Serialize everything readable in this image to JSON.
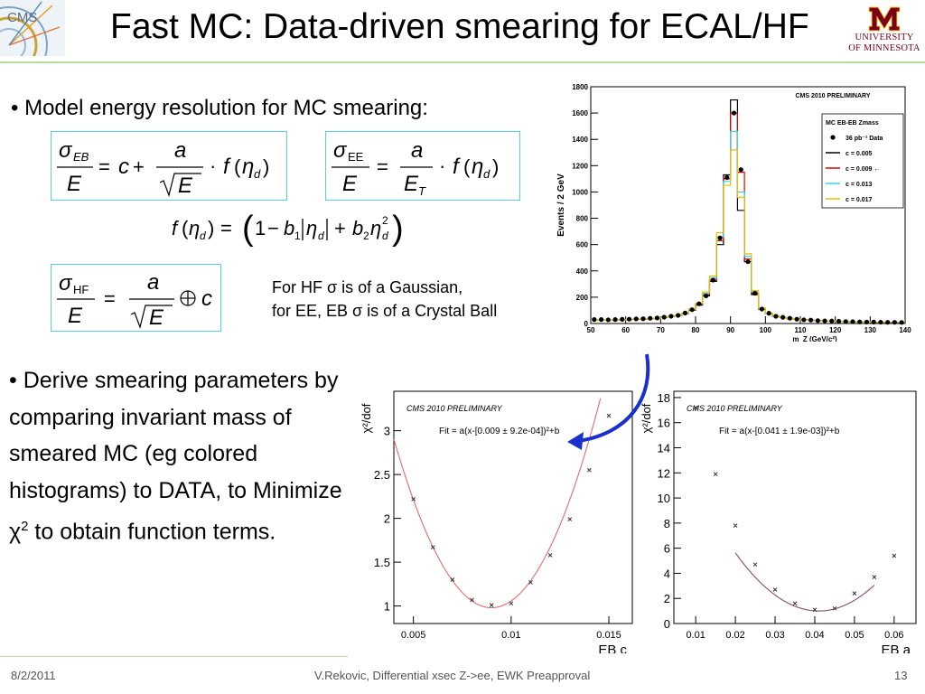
{
  "header": {
    "title": "Fast MC: Data-driven smearing for ECAL/HF",
    "logo_text": "CMS",
    "university_line1": "UNIVERSITY",
    "university_line2": "OF MINNESOTA",
    "colors": {
      "accent_rule": "#b9dca0",
      "umn_maroon": "#7a0019",
      "eq_border": "#55d0e4"
    }
  },
  "bullets": {
    "b1": "• Model energy resolution for MC smearing:",
    "b2": "• Derive smearing parameters by comparing invariant mass  of  smeared MC (eg colored histograms) to DATA, to Minimize χ",
    "b2_sup": "2",
    "b2_tail": " to obtain function terms."
  },
  "equations": {
    "hf_note_line1": "For HF σ is of a Gaussian,",
    "hf_note_line2": "for EE, EB σ is of a Crystal Ball"
  },
  "chart_data": [
    {
      "type": "bar",
      "label": "CMS 2010 PRELIMINARY",
      "xlabel": "m_Z (GeV/c²)",
      "ylabel": "Events / 2 GeV",
      "xlim": [
        50,
        140
      ],
      "ylim": [
        0,
        1800
      ],
      "x_ticks": [
        50,
        60,
        70,
        80,
        90,
        100,
        110,
        120,
        130,
        140
      ],
      "y_ticks": [
        0,
        200,
        400,
        600,
        800,
        1000,
        1200,
        1400,
        1600,
        1800
      ],
      "legend_position": "top-right",
      "legend_title": "MC EB-EB Zmass",
      "legend": [
        {
          "name": "36 pb⁻¹ Data",
          "color": "#000000",
          "marker": "dot"
        },
        {
          "name": "c = 0.005",
          "color": "#000000",
          "marker": "line"
        },
        {
          "name": "c = 0.009 ←",
          "color": "#e00000",
          "marker": "line"
        },
        {
          "name": "c = 0.013",
          "color": "#33d9e6",
          "marker": "line"
        },
        {
          "name": "c = 0.017",
          "color": "#e6c000",
          "marker": "line"
        }
      ],
      "bin_width": 2,
      "x": [
        50,
        52,
        54,
        56,
        58,
        60,
        62,
        64,
        66,
        68,
        70,
        72,
        74,
        76,
        78,
        80,
        82,
        84,
        86,
        88,
        90,
        92,
        94,
        96,
        98,
        100,
        102,
        104,
        106,
        108,
        110,
        112,
        114,
        116,
        118,
        120,
        122,
        124,
        126,
        128,
        130,
        132,
        134,
        136,
        138
      ],
      "series": [
        {
          "name": "c = 0.005",
          "color": "#000000",
          "values": [
            25,
            25,
            26,
            27,
            28,
            30,
            32,
            34,
            37,
            40,
            45,
            52,
            60,
            75,
            100,
            140,
            210,
            320,
            600,
            1130,
            1700,
            860,
            470,
            220,
            110,
            75,
            55,
            45,
            38,
            32,
            28,
            25,
            22,
            20,
            18,
            16,
            14,
            13,
            12,
            11,
            10,
            10,
            9,
            9,
            8
          ]
        },
        {
          "name": "c = 0.009 ←",
          "color": "#e00000",
          "values": [
            25,
            25,
            26,
            27,
            28,
            30,
            32,
            34,
            37,
            40,
            45,
            52,
            60,
            76,
            102,
            145,
            220,
            330,
            630,
            1100,
            1600,
            1150,
            490,
            230,
            112,
            76,
            55,
            45,
            38,
            32,
            28,
            25,
            22,
            20,
            18,
            16,
            14,
            13,
            12,
            11,
            10,
            10,
            9,
            9,
            8
          ]
        },
        {
          "name": "c = 0.013",
          "color": "#33d9e6",
          "values": [
            25,
            25,
            26,
            27,
            28,
            30,
            32,
            34,
            37,
            40,
            45,
            52,
            61,
            78,
            105,
            150,
            230,
            345,
            660,
            1080,
            1460,
            1000,
            510,
            240,
            115,
            77,
            56,
            45,
            38,
            32,
            28,
            25,
            22,
            20,
            18,
            16,
            14,
            13,
            12,
            11,
            10,
            10,
            9,
            9,
            8
          ]
        },
        {
          "name": "c = 0.017",
          "color": "#e6c000",
          "values": [
            25,
            25,
            26,
            27,
            28,
            30,
            32,
            34,
            37,
            40,
            45,
            52,
            62,
            80,
            110,
            155,
            240,
            360,
            690,
            1050,
            1320,
            960,
            530,
            250,
            118,
            78,
            57,
            46,
            38,
            32,
            28,
            25,
            22,
            20,
            18,
            16,
            14,
            13,
            12,
            11,
            10,
            10,
            9,
            9,
            8
          ]
        },
        {
          "name": "36 pb⁻¹ Data",
          "color": "#000000",
          "values": [
            30,
            30,
            28,
            30,
            32,
            33,
            35,
            36,
            40,
            42,
            48,
            55,
            62,
            80,
            105,
            150,
            210,
            330,
            650,
            1110,
            1600,
            1170,
            470,
            230,
            110,
            78,
            55,
            47,
            40,
            33,
            28,
            26,
            22,
            20,
            19,
            17,
            15,
            14,
            12,
            11,
            11,
            10,
            9,
            9,
            8
          ]
        }
      ]
    },
    {
      "type": "scatter",
      "label": "CMS 2010 PRELIMINARY",
      "fit_label": "Fit = a(x-[0.009 ± 9.2e-04])²+b",
      "xlabel": "EB c",
      "ylabel": "χ²/dof",
      "xlim": [
        0.004,
        0.0162
      ],
      "ylim": [
        0.8,
        3.45
      ],
      "x_ticks": [
        0.005,
        0.01,
        0.015
      ],
      "x_tick_labels": [
        "0.005",
        "0.01",
        "0.015"
      ],
      "y_ticks": [
        1,
        1.5,
        2,
        2.5,
        3
      ],
      "y_tick_labels": [
        "1",
        "1.5",
        "2",
        "2.5",
        "3"
      ],
      "points": {
        "x": [
          0.005,
          0.006,
          0.007,
          0.008,
          0.009,
          0.01,
          0.011,
          0.012,
          0.013,
          0.014,
          0.015
        ],
        "y": [
          2.22,
          1.67,
          1.3,
          1.07,
          1.01,
          1.03,
          1.27,
          1.58,
          1.99,
          2.55,
          3.17
        ]
      },
      "fit": {
        "x0": 0.009,
        "a": 77000,
        "b": 0.98
      }
    },
    {
      "type": "scatter",
      "label": "CMS 2010 PRELIMINARY",
      "fit_label": "Fit = a(x-[0.041 ± 1.9e-03])²+b",
      "xlabel": "EB a",
      "ylabel": "χ²/dof",
      "xlim": [
        0.0045,
        0.0655
      ],
      "ylim": [
        0,
        18.5
      ],
      "x_ticks": [
        0.01,
        0.02,
        0.03,
        0.04,
        0.05,
        0.06
      ],
      "x_tick_labels": [
        "0.01",
        "0.02",
        "0.03",
        "0.04",
        "0.05",
        "0.06"
      ],
      "y_ticks": [
        0,
        2,
        4,
        6,
        8,
        10,
        12,
        14,
        16,
        18
      ],
      "y_tick_labels": [
        "0",
        "2",
        "4",
        "6",
        "8",
        "10",
        "12",
        "14",
        "16",
        "18"
      ],
      "points": {
        "x": [
          0.01,
          0.015,
          0.02,
          0.025,
          0.03,
          0.035,
          0.04,
          0.045,
          0.05,
          0.055,
          0.06
        ],
        "y": [
          17.2,
          11.9,
          7.8,
          4.7,
          2.7,
          1.6,
          1.1,
          1.2,
          2.4,
          3.7,
          5.4
        ]
      },
      "fit": {
        "x0": 0.041,
        "a": 10500,
        "b": 1.0,
        "xrange": [
          0.02,
          0.055
        ]
      }
    }
  ],
  "footer": {
    "date": "8/2/2011",
    "center": "V.Rekovic, Differential xsec Z->ee, EWK Preapproval",
    "page": "13"
  }
}
